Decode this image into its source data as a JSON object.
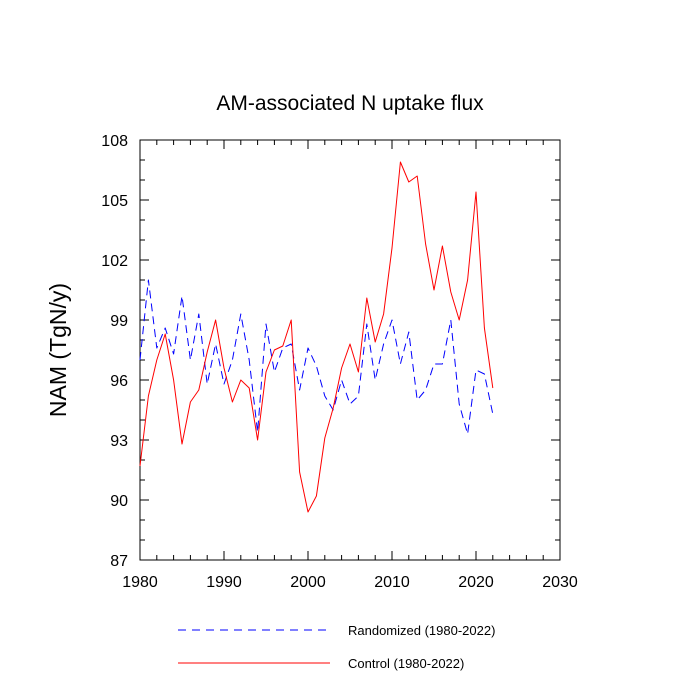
{
  "chart_data": {
    "type": "line",
    "title": "AM-associated N uptake flux",
    "xlabel": "",
    "ylabel": "NAM  (TgN/y)",
    "xlim": [
      1980,
      2030
    ],
    "ylim": [
      87,
      108
    ],
    "xticks": [
      1980,
      1990,
      2000,
      2010,
      2020,
      2030
    ],
    "yticks": [
      87,
      90,
      93,
      96,
      99,
      102,
      105,
      108
    ],
    "x": [
      1980,
      1981,
      1982,
      1983,
      1984,
      1985,
      1986,
      1987,
      1988,
      1989,
      1990,
      1991,
      1992,
      1993,
      1994,
      1995,
      1996,
      1997,
      1998,
      1999,
      2000,
      2001,
      2002,
      2003,
      2004,
      2005,
      2006,
      2007,
      2008,
      2009,
      2010,
      2011,
      2012,
      2013,
      2014,
      2015,
      2016,
      2017,
      2018,
      2019,
      2020,
      2021,
      2022
    ],
    "series": [
      {
        "name": "Randomized (1980-2022)",
        "color": "#0000ff",
        "style": "dashed",
        "values": [
          97.0,
          101.0,
          97.6,
          98.6,
          97.3,
          100.2,
          97.0,
          99.3,
          95.8,
          97.8,
          95.8,
          97.0,
          99.3,
          97.0,
          93.4,
          98.8,
          96.4,
          97.6,
          97.8,
          95.5,
          97.6,
          96.7,
          95.2,
          94.5,
          96.0,
          94.8,
          95.2,
          98.8,
          96.0,
          97.8,
          99.0,
          96.8,
          98.4,
          95.0,
          95.5,
          96.8,
          96.8,
          99.0,
          94.8,
          93.3,
          96.5,
          96.3,
          94.3
        ]
      },
      {
        "name": "Control (1980-2022)",
        "color": "#ff0000",
        "style": "solid",
        "values": [
          91.7,
          95.2,
          97.0,
          98.3,
          96.0,
          92.8,
          94.9,
          95.5,
          97.4,
          99.0,
          96.6,
          94.9,
          96.0,
          95.6,
          93.0,
          96.4,
          97.5,
          97.7,
          99.0,
          91.4,
          89.4,
          90.2,
          93.1,
          94.6,
          96.6,
          97.8,
          96.4,
          100.1,
          97.9,
          99.3,
          102.6,
          106.9,
          105.9,
          106.2,
          102.8,
          100.5,
          102.7,
          100.4,
          99.0,
          101.0,
          105.4,
          98.6,
          95.6
        ]
      }
    ],
    "legend": {
      "position": "bottom",
      "entries": [
        "Randomized (1980-2022)",
        "Control (1980-2022)"
      ]
    }
  }
}
